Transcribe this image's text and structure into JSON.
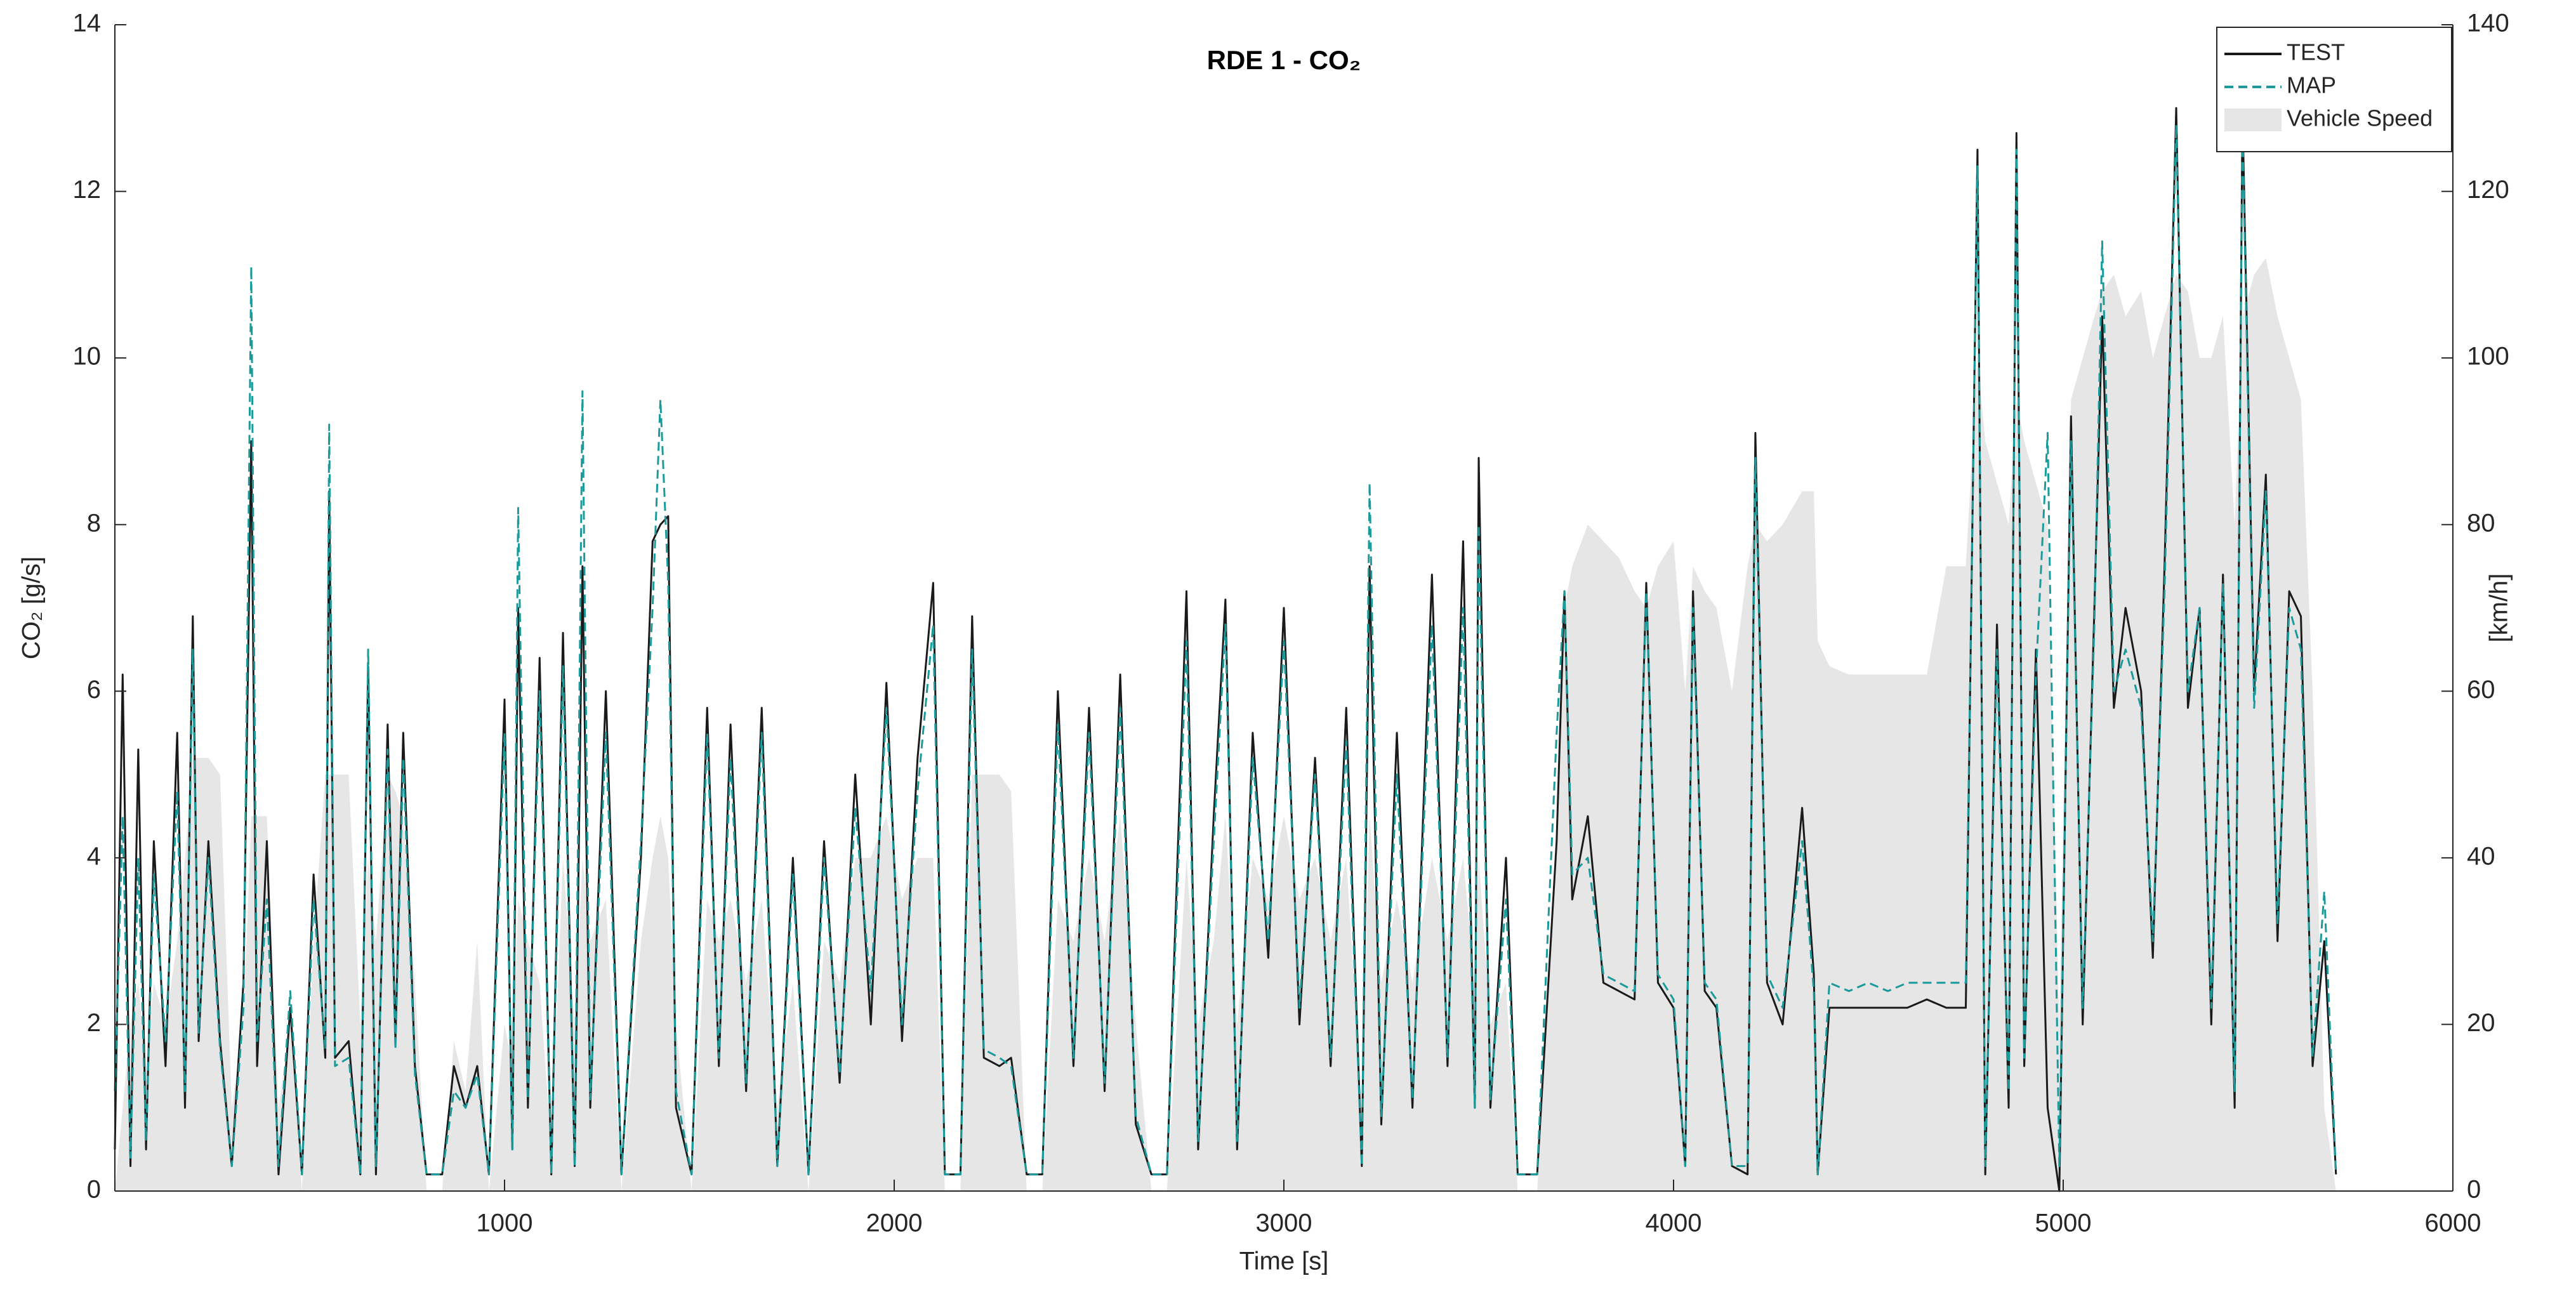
{
  "chart_data": {
    "type": "line",
    "title": "RDE 1 - CO₂",
    "xlabel": "Time [s]",
    "ylabel": "CO₂ [g/s]",
    "y2label": "[km/h]",
    "xlim": [
      0,
      6000
    ],
    "xticks": [
      1000,
      2000,
      3000,
      4000,
      5000,
      6000
    ],
    "ylim": [
      0,
      14
    ],
    "yticks": [
      0,
      2,
      4,
      6,
      8,
      10,
      12,
      14
    ],
    "y2lim": [
      0,
      140
    ],
    "y2ticks": [
      0,
      20,
      40,
      60,
      80,
      100,
      120,
      140
    ],
    "legend": "upper right",
    "x": [
      0,
      20,
      40,
      60,
      80,
      100,
      130,
      160,
      180,
      200,
      215,
      240,
      270,
      300,
      330,
      350,
      365,
      390,
      420,
      450,
      480,
      510,
      540,
      550,
      565,
      600,
      630,
      650,
      670,
      700,
      720,
      740,
      770,
      800,
      840,
      870,
      900,
      930,
      960,
      1000,
      1020,
      1035,
      1060,
      1090,
      1120,
      1150,
      1180,
      1200,
      1220,
      1260,
      1300,
      1350,
      1380,
      1400,
      1420,
      1440,
      1480,
      1520,
      1550,
      1580,
      1620,
      1660,
      1700,
      1740,
      1780,
      1820,
      1860,
      1900,
      1940,
      1980,
      2020,
      2060,
      2100,
      2130,
      2170,
      2200,
      2230,
      2270,
      2300,
      2340,
      2380,
      2420,
      2460,
      2500,
      2540,
      2580,
      2620,
      2660,
      2700,
      2750,
      2780,
      2820,
      2850,
      2880,
      2920,
      2960,
      3000,
      3040,
      3080,
      3120,
      3160,
      3200,
      3220,
      3250,
      3290,
      3330,
      3380,
      3420,
      3460,
      3490,
      3500,
      3530,
      3570,
      3600,
      3650,
      3700,
      3720,
      3740,
      3780,
      3820,
      3860,
      3900,
      3930,
      3960,
      4000,
      4030,
      4050,
      4080,
      4110,
      4150,
      4190,
      4210,
      4240,
      4280,
      4330,
      4360,
      4370,
      4400,
      4450,
      4500,
      4550,
      4600,
      4650,
      4700,
      4750,
      4780,
      4800,
      4830,
      4860,
      4880,
      4900,
      4930,
      4960,
      4990,
      5020,
      5050,
      5080,
      5100,
      5130,
      5160,
      5200,
      5230,
      5260,
      5290,
      5320,
      5350,
      5380,
      5410,
      5440,
      5460,
      5490,
      5520,
      5550,
      5580,
      5610,
      5640,
      5670,
      5700
    ],
    "series": [
      {
        "name": "Vehicle Speed",
        "type": "area",
        "axis": "y2",
        "color": "#e6e6e6",
        "values": [
          0,
          10,
          20,
          25,
          15,
          25,
          20,
          30,
          40,
          52,
          52,
          52,
          50,
          10,
          20,
          45,
          45,
          45,
          10,
          20,
          0,
          30,
          50,
          50,
          50,
          50,
          20,
          40,
          30,
          50,
          48,
          45,
          25,
          0,
          0,
          18,
          12,
          30,
          0,
          20,
          15,
          35,
          30,
          25,
          5,
          40,
          20,
          40,
          30,
          35,
          0,
          30,
          40,
          45,
          40,
          20,
          0,
          35,
          30,
          35,
          25,
          35,
          10,
          25,
          0,
          30,
          25,
          40,
          40,
          45,
          35,
          40,
          40,
          0,
          0,
          50,
          50,
          50,
          48,
          0,
          0,
          35,
          30,
          40,
          30,
          45,
          20,
          0,
          0,
          40,
          20,
          30,
          45,
          20,
          40,
          35,
          45,
          35,
          40,
          30,
          40,
          10,
          45,
          25,
          35,
          25,
          40,
          30,
          40,
          25,
          40,
          20,
          25,
          0,
          0,
          40,
          70,
          75,
          80,
          78,
          76,
          72,
          70,
          75,
          78,
          60,
          75,
          72,
          70,
          60,
          75,
          80,
          78,
          80,
          84,
          84,
          66,
          63,
          62,
          62,
          62,
          62,
          62,
          75,
          75,
          100,
          90,
          85,
          80,
          95,
          90,
          85,
          80,
          20,
          95,
          100,
          105,
          108,
          110,
          105,
          108,
          100,
          105,
          110,
          108,
          100,
          100,
          105,
          80,
          105,
          110,
          112,
          105,
          100,
          95,
          60,
          10,
          0
        ]
      },
      {
        "name": "TEST",
        "type": "line",
        "color": "#1a1a1a",
        "values": [
          0.5,
          6.2,
          0.3,
          5.3,
          0.5,
          4.2,
          1.5,
          5.5,
          1.0,
          6.9,
          1.8,
          4.2,
          1.8,
          0.3,
          2.5,
          9.0,
          1.5,
          4.2,
          0.2,
          2.2,
          0.2,
          3.8,
          1.6,
          8.4,
          1.6,
          1.8,
          0.2,
          6.3,
          0.2,
          5.6,
          1.8,
          5.5,
          1.5,
          0.2,
          0.2,
          1.5,
          1.0,
          1.5,
          0.2,
          5.9,
          0.5,
          7.0,
          1.0,
          6.4,
          0.2,
          6.7,
          0.3,
          7.5,
          1.0,
          6.0,
          0.2,
          4.0,
          7.8,
          8.0,
          8.1,
          1.0,
          0.2,
          5.8,
          1.5,
          5.6,
          1.2,
          5.8,
          0.3,
          4.0,
          0.2,
          4.2,
          1.3,
          5.0,
          2.0,
          6.1,
          1.8,
          5.2,
          7.3,
          0.2,
          0.2,
          6.9,
          1.6,
          1.5,
          1.6,
          0.2,
          0.2,
          6.0,
          1.5,
          5.8,
          1.2,
          6.2,
          0.8,
          0.2,
          0.2,
          7.2,
          0.5,
          4.5,
          7.1,
          0.5,
          5.5,
          2.8,
          7.0,
          2.0,
          5.2,
          1.5,
          5.8,
          0.3,
          7.5,
          0.8,
          5.5,
          1.0,
          7.4,
          1.5,
          7.8,
          1.0,
          8.8,
          1.0,
          4.0,
          0.2,
          0.2,
          4.2,
          7.2,
          3.5,
          4.5,
          2.5,
          2.4,
          2.3,
          7.3,
          2.5,
          2.2,
          0.3,
          7.2,
          2.4,
          2.2,
          0.3,
          0.2,
          9.1,
          2.5,
          2.0,
          4.6,
          2.6,
          0.2,
          2.2,
          2.2,
          2.2,
          2.2,
          2.2,
          2.3,
          2.2,
          2.2,
          12.5,
          0.2,
          6.8,
          1.0,
          12.7,
          1.5,
          6.5,
          1.0,
          0.0,
          9.3,
          2.0,
          7.0,
          10.5,
          5.8,
          7.0,
          6.0,
          2.8,
          7.5,
          13.0,
          5.8,
          7.0,
          2.0,
          7.4,
          1.0,
          13.0,
          6.0,
          8.6,
          3.0,
          7.2,
          6.9,
          1.5,
          3.0,
          0.2
        ]
      },
      {
        "name": "MAP",
        "type": "line",
        "style": "dashed",
        "color": "#1a9a9a",
        "values": [
          1.2,
          4.5,
          0.4,
          4.0,
          0.6,
          3.8,
          1.8,
          4.8,
          1.2,
          6.5,
          1.9,
          4.0,
          1.7,
          0.3,
          2.2,
          11.1,
          1.8,
          3.5,
          0.3,
          2.4,
          0.2,
          3.5,
          1.7,
          9.2,
          1.5,
          1.6,
          0.2,
          6.5,
          0.3,
          5.3,
          1.7,
          5.2,
          1.4,
          0.2,
          0.2,
          1.2,
          1.0,
          1.4,
          0.2,
          5.5,
          0.5,
          8.2,
          1.1,
          6.0,
          0.2,
          6.3,
          0.3,
          9.6,
          1.1,
          5.5,
          0.2,
          4.2,
          7.0,
          9.5,
          7.3,
          1.2,
          0.2,
          5.5,
          1.6,
          5.2,
          1.3,
          5.5,
          0.3,
          3.8,
          0.2,
          4.0,
          1.4,
          4.6,
          2.4,
          5.8,
          2.0,
          4.8,
          6.8,
          0.2,
          0.2,
          6.5,
          1.7,
          1.6,
          1.5,
          0.2,
          0.2,
          5.6,
          1.6,
          5.5,
          1.3,
          5.8,
          0.9,
          0.2,
          0.2,
          6.6,
          0.6,
          4.2,
          6.8,
          0.6,
          5.2,
          3.0,
          6.6,
          2.2,
          5.0,
          1.6,
          5.4,
          0.3,
          8.5,
          0.9,
          5.0,
          1.1,
          6.8,
          1.6,
          7.0,
          1.0,
          8.0,
          1.1,
          3.5,
          0.2,
          0.2,
          5.5,
          7.2,
          3.8,
          4.0,
          2.6,
          2.5,
          2.4,
          7.2,
          2.6,
          2.3,
          0.3,
          7.0,
          2.5,
          2.3,
          0.3,
          0.3,
          8.8,
          2.6,
          2.2,
          4.2,
          2.4,
          0.2,
          2.5,
          2.4,
          2.5,
          2.4,
          2.5,
          2.5,
          2.5,
          2.5,
          12.3,
          0.3,
          6.5,
          1.2,
          12.5,
          1.6,
          6.2,
          9.1,
          0.3,
          9.0,
          2.2,
          6.8,
          11.4,
          6.0,
          6.5,
          5.8,
          3.0,
          7.2,
          12.8,
          6.0,
          7.0,
          2.2,
          7.3,
          1.2,
          12.8,
          5.8,
          8.4,
          3.2,
          7.0,
          6.5,
          1.6,
          3.6,
          0.2
        ]
      }
    ]
  }
}
